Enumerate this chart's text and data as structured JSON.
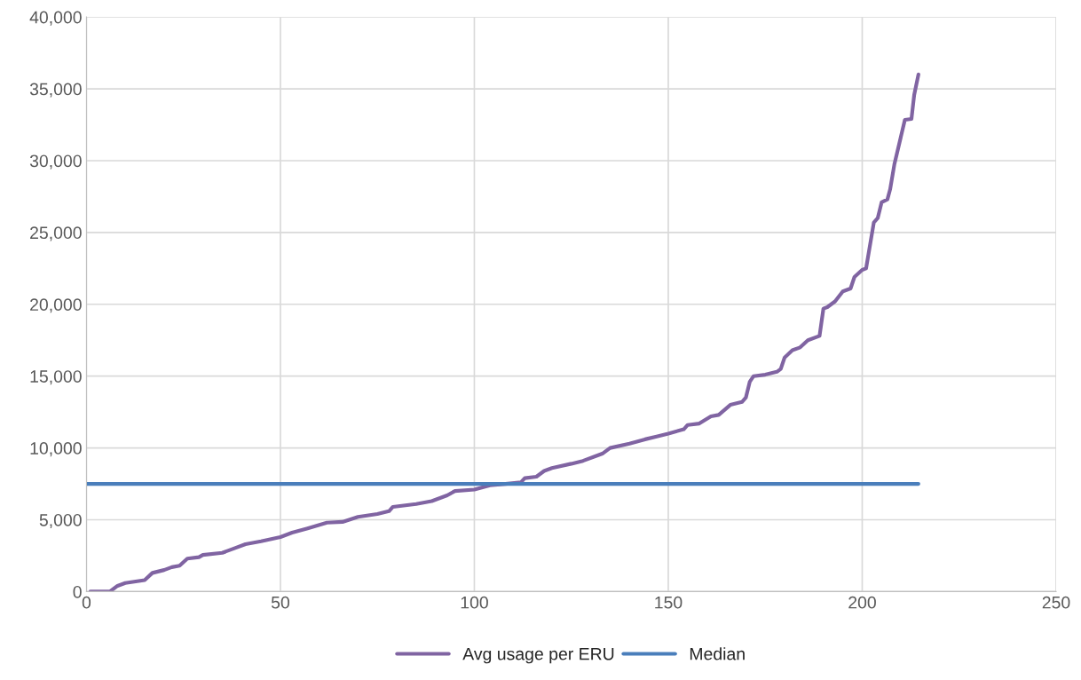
{
  "chart_data": {
    "type": "line",
    "series": [
      {
        "name": "Avg usage per ERU",
        "color": "#8064a2",
        "x": [
          1,
          6,
          8,
          10,
          15,
          17,
          20,
          22,
          24,
          26,
          29,
          30,
          35,
          38,
          41,
          45,
          50,
          53,
          57,
          62,
          66,
          70,
          75,
          78,
          79,
          85,
          89,
          93,
          95,
          100,
          104,
          108,
          112,
          113,
          116,
          118,
          120,
          125,
          128,
          131,
          133,
          135,
          140,
          144,
          147,
          150,
          154,
          155,
          158,
          161,
          163,
          166,
          169,
          170,
          171,
          172,
          175,
          178,
          179,
          180,
          182,
          184,
          186,
          189,
          190,
          191,
          193,
          195,
          197,
          198,
          200,
          201,
          203,
          204,
          205,
          206.5,
          207.2,
          208.3,
          211,
          212.7,
          213.4,
          214.5
        ],
        "values": [
          0,
          0,
          400,
          600,
          800,
          1300,
          1500,
          1700,
          1800,
          2300,
          2400,
          2550,
          2700,
          3000,
          3300,
          3500,
          3800,
          4100,
          4400,
          4800,
          4850,
          5200,
          5400,
          5600,
          5900,
          6100,
          6300,
          6700,
          7000,
          7100,
          7400,
          7500,
          7600,
          7900,
          8000,
          8400,
          8600,
          8900,
          9100,
          9400,
          9600,
          10000,
          10300,
          10600,
          10800,
          11000,
          11300,
          11600,
          11700,
          12200,
          12300,
          13000,
          13200,
          13500,
          14600,
          15000,
          15100,
          15300,
          15500,
          16300,
          16800,
          17000,
          17500,
          17800,
          19700,
          19800,
          20200,
          20900,
          21100,
          21900,
          22400,
          22500,
          25700,
          26000,
          27100,
          27300,
          28000,
          29750,
          32840,
          32900,
          34570,
          36000
        ]
      },
      {
        "name": "Median",
        "color": "#4a7ebb",
        "x": [
          0,
          214.5
        ],
        "values": [
          7500,
          7500
        ]
      }
    ],
    "xlim": [
      0,
      250
    ],
    "xticks": [
      0,
      50,
      100,
      150,
      200,
      250
    ],
    "ylim": [
      0,
      40000
    ],
    "yticks": [
      {
        "value": 0,
        "label": "0"
      },
      {
        "value": 5000,
        "label": "5,000"
      },
      {
        "value": 10000,
        "label": "10,000"
      },
      {
        "value": 15000,
        "label": "15,000"
      },
      {
        "value": 20000,
        "label": "20,000"
      },
      {
        "value": 25000,
        "label": "25,000"
      },
      {
        "value": 30000,
        "label": "30,000"
      },
      {
        "value": 35000,
        "label": "35,000"
      },
      {
        "value": 40000,
        "label": "40,000"
      }
    ],
    "grid": true,
    "legend": "bottom",
    "marker": "none",
    "line_style": "solid"
  }
}
